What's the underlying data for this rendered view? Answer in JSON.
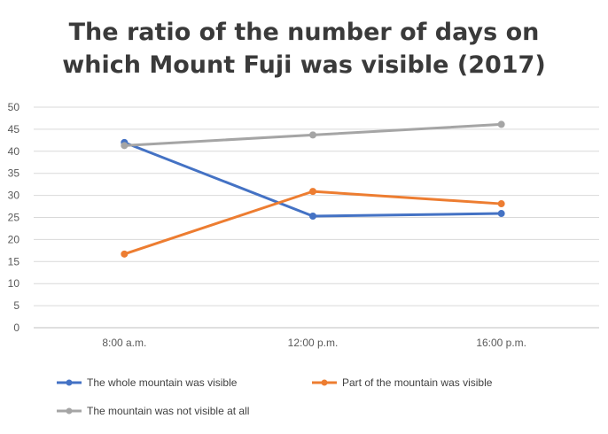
{
  "chart_data": {
    "type": "line",
    "title_line1": "The ratio of the number of days on",
    "title_line2": "which Mount Fuji was visible (2017)",
    "categories": [
      "8:00 a.m.",
      "12:00 p.m.",
      "16:00 p.m."
    ],
    "ylim": [
      0,
      50
    ],
    "yticks": [
      0,
      5,
      10,
      15,
      20,
      25,
      30,
      35,
      40,
      45,
      50
    ],
    "grid": true,
    "legend_position": "bottom",
    "series": [
      {
        "name": "The whole mountain was visible",
        "color": "#4472C4",
        "values": [
          42,
          25.3,
          25.9
        ]
      },
      {
        "name": "Part of the mountain was visible",
        "color": "#ED7D31",
        "values": [
          16.7,
          30.9,
          28.1
        ]
      },
      {
        "name": "The mountain was not visible at all",
        "color": "#A5A5A5",
        "values": [
          41.3,
          43.7,
          46.1
        ]
      }
    ]
  }
}
